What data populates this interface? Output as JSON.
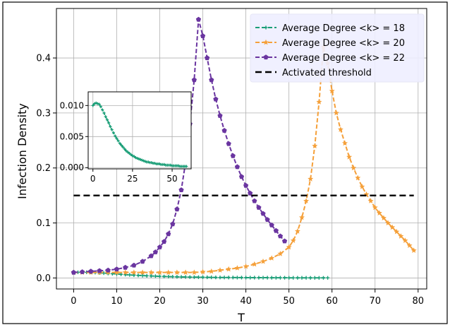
{
  "chart_data": {
    "type": "line",
    "xlabel": "T",
    "ylabel": "Infection Density",
    "xlim": [
      -4,
      82
    ],
    "ylim": [
      -0.02,
      0.49
    ],
    "xticks": [
      "0",
      "10",
      "20",
      "30",
      "40",
      "50",
      "60",
      "70",
      "80"
    ],
    "yticks": [
      "0.0",
      "0.1",
      "0.2",
      "0.3",
      "0.4"
    ],
    "grid": true,
    "legend_position": "top-right",
    "series": [
      {
        "name": "Average Degree <k> = 18",
        "color": "#1a9e77",
        "marker": "plus",
        "style": "dashed",
        "x": [
          0,
          1,
          2,
          3,
          4,
          5,
          6,
          7,
          8,
          9,
          10,
          11,
          12,
          13,
          14,
          15,
          16,
          17,
          18,
          19,
          20,
          21,
          22,
          23,
          24,
          25,
          26,
          27,
          28,
          29,
          30,
          31,
          32,
          33,
          34,
          35,
          36,
          37,
          38,
          39,
          40,
          41,
          42,
          43,
          44,
          45,
          46,
          47,
          48,
          49,
          50,
          51,
          52,
          53,
          54,
          55,
          56,
          57,
          58,
          59
        ],
        "y": [
          0.01,
          0.0103,
          0.0104,
          0.0103,
          0.0102,
          0.0098,
          0.0093,
          0.0088,
          0.0082,
          0.0077,
          0.0072,
          0.0066,
          0.0061,
          0.0056,
          0.0051,
          0.0047,
          0.0043,
          0.0039,
          0.0036,
          0.0033,
          0.003,
          0.0027,
          0.0025,
          0.0023,
          0.0021,
          0.0019,
          0.0018,
          0.0016,
          0.0015,
          0.0014,
          0.0013,
          0.0012,
          0.0011,
          0.001,
          0.0009,
          0.0009,
          0.0008,
          0.0008,
          0.0007,
          0.0007,
          0.0006,
          0.0006,
          0.0006,
          0.0005,
          0.0005,
          0.0005,
          0.0004,
          0.0004,
          0.0004,
          0.0004,
          0.0003,
          0.0003,
          0.0003,
          0.0003,
          0.0003,
          0.0002,
          0.0002,
          0.0002,
          0.0002,
          0.0002
        ]
      },
      {
        "name": "Average Degree <k> = 20",
        "color": "#f5a03a",
        "marker": "star",
        "style": "dashed",
        "x": [
          0,
          2,
          4,
          6,
          8,
          10,
          12,
          14,
          16,
          18,
          20,
          22,
          24,
          26,
          28,
          30,
          32,
          34,
          36,
          38,
          40,
          42,
          44,
          46,
          48,
          50,
          51,
          52,
          53,
          54,
          55,
          56,
          57,
          58,
          59,
          60,
          61,
          62,
          63,
          64,
          65,
          66,
          67,
          68,
          69,
          70,
          71,
          72,
          73,
          74,
          75,
          76,
          77,
          78,
          79
        ],
        "y": [
          0.01,
          0.01,
          0.01,
          0.01,
          0.01,
          0.01,
          0.01,
          0.01,
          0.01,
          0.01,
          0.01,
          0.01,
          0.01,
          0.01,
          0.01,
          0.011,
          0.012,
          0.014,
          0.016,
          0.018,
          0.021,
          0.025,
          0.03,
          0.036,
          0.044,
          0.056,
          0.068,
          0.085,
          0.11,
          0.14,
          0.18,
          0.24,
          0.32,
          0.42,
          0.39,
          0.34,
          0.3,
          0.27,
          0.245,
          0.22,
          0.2,
          0.182,
          0.166,
          0.152,
          0.14,
          0.128,
          0.118,
          0.109,
          0.1,
          0.092,
          0.084,
          0.076,
          0.068,
          0.059,
          0.05
        ]
      },
      {
        "name": "Average Degree <k> = 22",
        "color": "#6a35a0",
        "marker": "pentagon",
        "style": "dashed",
        "x": [
          0,
          2,
          4,
          6,
          8,
          10,
          12,
          14,
          16,
          18,
          19,
          20,
          21,
          22,
          23,
          24,
          25,
          26,
          27,
          28,
          29,
          30,
          31,
          32,
          33,
          34,
          35,
          36,
          37,
          38,
          39,
          40,
          41,
          42,
          43,
          44,
          45,
          46,
          47,
          48,
          49
        ],
        "y": [
          0.01,
          0.011,
          0.012,
          0.013,
          0.014,
          0.016,
          0.019,
          0.023,
          0.03,
          0.04,
          0.047,
          0.056,
          0.066,
          0.08,
          0.098,
          0.125,
          0.16,
          0.21,
          0.28,
          0.36,
          0.47,
          0.44,
          0.4,
          0.36,
          0.325,
          0.295,
          0.268,
          0.244,
          0.222,
          0.202,
          0.184,
          0.168,
          0.154,
          0.14,
          0.128,
          0.117,
          0.106,
          0.096,
          0.086,
          0.076,
          0.067
        ]
      },
      {
        "name": "Activated threshold",
        "color": "#000000",
        "style": "dashed",
        "x": [
          0,
          79
        ],
        "y": [
          0.15,
          0.15
        ]
      }
    ],
    "inset": {
      "series": "Average Degree <k> = 18",
      "xlim": [
        -3,
        62
      ],
      "ylim": [
        -0.0002,
        0.0122
      ],
      "xticks": [
        "0",
        "25",
        "50"
      ],
      "yticks": [
        "0.000",
        "0.005",
        "0.010"
      ],
      "grid": true
    }
  }
}
